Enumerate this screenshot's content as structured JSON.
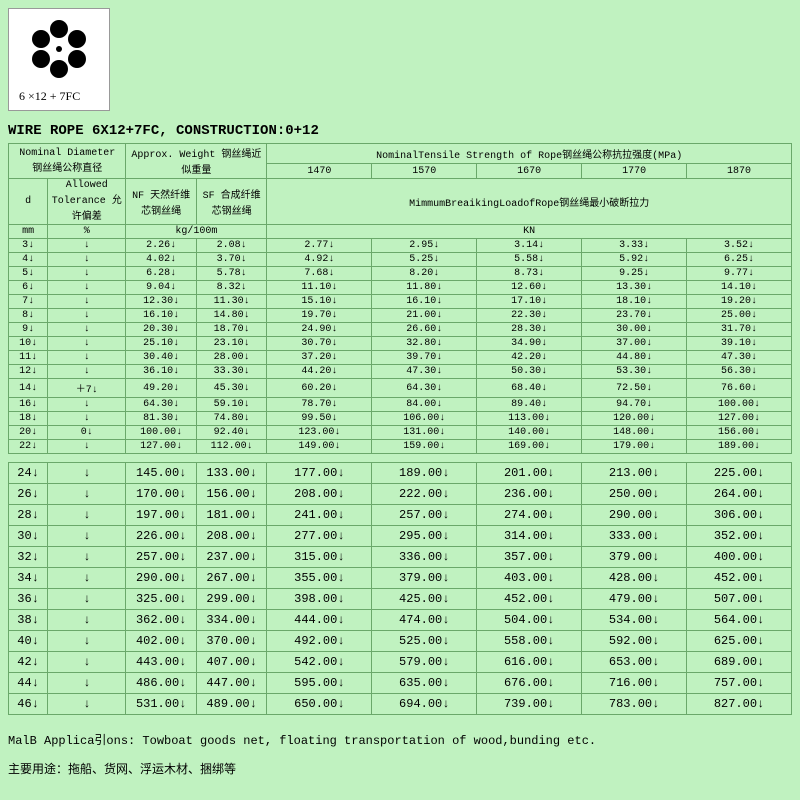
{
  "figure_label": "6 ×12 + 7FC",
  "title": "WIRE ROPE  6X12+7FC, CONSTRUCTION:0+12",
  "header": {
    "nominal_diameter": "Nominal Diameter 钢丝绳公称直径",
    "approx_weight": "Approx. Weight 钢丝绳近似重量",
    "tensile_title": "NominalTensile Strength of Rope钢丝绳公称抗拉强度(MPa)",
    "d": "d",
    "allowed_tol": "Allowed Tolerance 允许偏差",
    "nf": "NF 天然纤维 芯钢丝绳",
    "sf": "SF 合成纤维 芯钢丝绳",
    "mbl": "MimmumBreaikingLoadofRope钢丝绳最小破断拉力",
    "grades": [
      "1470",
      "1570",
      "1670",
      "1770",
      "1870"
    ],
    "unit_mm": "mm",
    "unit_pct": "%",
    "unit_kg": "kg/100m",
    "unit_kn": "KN"
  },
  "rows1": [
    {
      "d": "3",
      "tol": "",
      "nf": "2.26",
      "sf": "2.08",
      "v": [
        "2.77",
        "2.95",
        "3.14",
        "3.33",
        "3.52"
      ]
    },
    {
      "d": "4",
      "tol": "",
      "nf": "4.02",
      "sf": "3.70",
      "v": [
        "4.92",
        "5.25",
        "5.58",
        "5.92",
        "6.25"
      ]
    },
    {
      "d": "5",
      "tol": "",
      "nf": "6.28",
      "sf": "5.78",
      "v": [
        "7.68",
        "8.20",
        "8.73",
        "9.25",
        "9.77"
      ]
    },
    {
      "d": "6",
      "tol": "",
      "nf": "9.04",
      "sf": "8.32",
      "v": [
        "11.10",
        "11.80",
        "12.60",
        "13.30",
        "14.10"
      ]
    },
    {
      "d": "7",
      "tol": "",
      "nf": "12.30",
      "sf": "11.30",
      "v": [
        "15.10",
        "16.10",
        "17.10",
        "18.10",
        "19.20"
      ]
    },
    {
      "d": "8",
      "tol": "",
      "nf": "16.10",
      "sf": "14.80",
      "v": [
        "19.70",
        "21.00",
        "22.30",
        "23.70",
        "25.00"
      ]
    },
    {
      "d": "9",
      "tol": "",
      "nf": "20.30",
      "sf": "18.70",
      "v": [
        "24.90",
        "26.60",
        "28.30",
        "30.00",
        "31.70"
      ]
    },
    {
      "d": "10",
      "tol": "",
      "nf": "25.10",
      "sf": "23.10",
      "v": [
        "30.70",
        "32.80",
        "34.90",
        "37.00",
        "39.10"
      ]
    },
    {
      "d": "11",
      "tol": "",
      "nf": "30.40",
      "sf": "28.00",
      "v": [
        "37.20",
        "39.70",
        "42.20",
        "44.80",
        "47.30"
      ]
    },
    {
      "d": "12",
      "tol": "",
      "nf": "36.10",
      "sf": "33.30",
      "v": [
        "44.20",
        "47.30",
        "50.30",
        "53.30",
        "56.30"
      ]
    },
    {
      "d": "14",
      "tol": "＋7",
      "nf": "49.20",
      "sf": "45.30",
      "v": [
        "60.20",
        "64.30",
        "68.40",
        "72.50",
        "76.60"
      ]
    },
    {
      "d": "16",
      "tol": "",
      "nf": "64.30",
      "sf": "59.10",
      "v": [
        "78.70",
        "84.00",
        "89.40",
        "94.70",
        "100.00"
      ]
    },
    {
      "d": "18",
      "tol": "",
      "nf": "81.30",
      "sf": "74.80",
      "v": [
        "99.50",
        "106.00",
        "113.00",
        "120.00",
        "127.00"
      ]
    },
    {
      "d": "20",
      "tol": "0",
      "nf": "100.00",
      "sf": "92.40",
      "v": [
        "123.00",
        "131.00",
        "140.00",
        "148.00",
        "156.00"
      ]
    },
    {
      "d": "22",
      "tol": "",
      "nf": "127.00",
      "sf": "112.00",
      "v": [
        "149.00",
        "159.00",
        "169.00",
        "179.00",
        "189.00"
      ]
    }
  ],
  "rows2": [
    {
      "d": "24",
      "nf": "145.00",
      "sf": "133.00",
      "v": [
        "177.00",
        "189.00",
        "201.00",
        "213.00",
        "225.00"
      ]
    },
    {
      "d": "26",
      "nf": "170.00",
      "sf": "156.00",
      "v": [
        "208.00",
        "222.00",
        "236.00",
        "250.00",
        "264.00"
      ]
    },
    {
      "d": "28",
      "nf": "197.00",
      "sf": "181.00",
      "v": [
        "241.00",
        "257.00",
        "274.00",
        "290.00",
        "306.00"
      ]
    },
    {
      "d": "30",
      "nf": "226.00",
      "sf": "208.00",
      "v": [
        "277.00",
        "295.00",
        "314.00",
        "333.00",
        "352.00"
      ]
    },
    {
      "d": "32",
      "nf": "257.00",
      "sf": "237.00",
      "v": [
        "315.00",
        "336.00",
        "357.00",
        "379.00",
        "400.00"
      ]
    },
    {
      "d": "34",
      "nf": "290.00",
      "sf": "267.00",
      "v": [
        "355.00",
        "379.00",
        "403.00",
        "428.00",
        "452.00"
      ]
    },
    {
      "d": "36",
      "nf": "325.00",
      "sf": "299.00",
      "v": [
        "398.00",
        "425.00",
        "452.00",
        "479.00",
        "507.00"
      ]
    },
    {
      "d": "38",
      "nf": "362.00",
      "sf": "334.00",
      "v": [
        "444.00",
        "474.00",
        "504.00",
        "534.00",
        "564.00"
      ]
    },
    {
      "d": "40",
      "nf": "402.00",
      "sf": "370.00",
      "v": [
        "492.00",
        "525.00",
        "558.00",
        "592.00",
        "625.00"
      ]
    },
    {
      "d": "42",
      "nf": "443.00",
      "sf": "407.00",
      "v": [
        "542.00",
        "579.00",
        "616.00",
        "653.00",
        "689.00"
      ]
    },
    {
      "d": "44",
      "nf": "486.00",
      "sf": "447.00",
      "v": [
        "595.00",
        "635.00",
        "676.00",
        "716.00",
        "757.00"
      ]
    },
    {
      "d": "46",
      "nf": "531.00",
      "sf": "489.00",
      "v": [
        "650.00",
        "694.00",
        "739.00",
        "783.00",
        "827.00"
      ]
    }
  ],
  "footer_en": "MalB Applica引ons:  Towboat goods net, floating transportation of wood,bunding etc.",
  "footer_cn": "主要用途：拖船、货网、浮运木材、捆绑等"
}
